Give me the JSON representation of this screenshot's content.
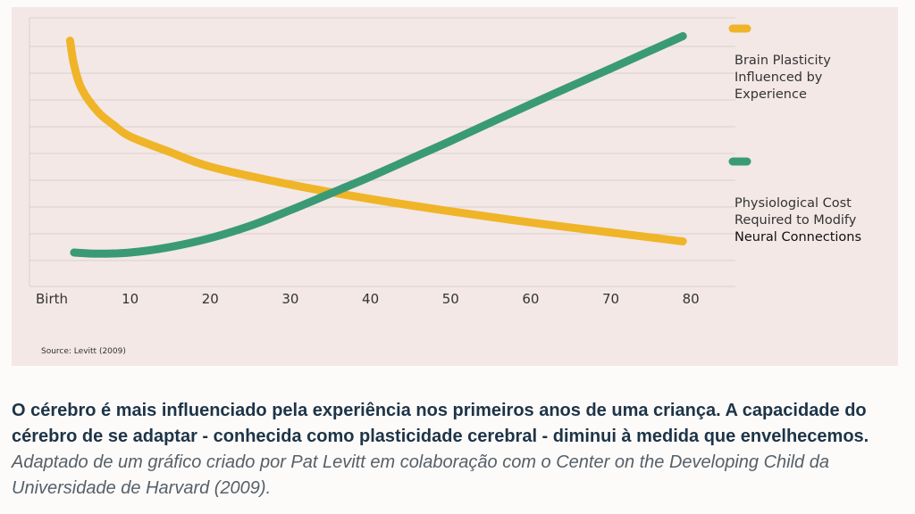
{
  "chart_data": {
    "type": "line",
    "x_tick_labels": [
      "Birth",
      "10",
      "20",
      "30",
      "40",
      "50",
      "60",
      "70",
      "80"
    ],
    "x_ticks": [
      0,
      10,
      20,
      30,
      40,
      50,
      60,
      70,
      80
    ],
    "xlim": [
      0,
      82
    ],
    "ylim": [
      0,
      100
    ],
    "grid": true,
    "series": [
      {
        "name": "Brain Plasticity Influenced by Experience",
        "legend_lines": [
          "Brain Plasticity",
          "Influenced by",
          "Experience"
        ],
        "color": "#f0b428",
        "x": [
          2.5,
          3,
          4,
          6,
          8,
          10,
          15,
          20,
          30,
          40,
          50,
          60,
          70,
          79
        ],
        "y": [
          95,
          84,
          73,
          63,
          57,
          52,
          45,
          38.5,
          30.5,
          24,
          18.5,
          13.5,
          9,
          5
        ]
      },
      {
        "name": "Physiological Cost Required to Modify Neural Connections",
        "legend_lines": [
          "Physiological Cost",
          "Required to Modify",
          "Neural Connections"
        ],
        "color": "#3a9a76",
        "x": [
          3,
          6,
          10,
          15,
          20,
          25,
          30,
          35,
          40,
          45,
          50,
          60,
          70,
          79
        ],
        "y": [
          0,
          -0.5,
          0,
          2.5,
          6.5,
          12,
          19,
          26.5,
          34,
          42,
          50,
          66.5,
          82.5,
          97
        ]
      }
    ],
    "source": "Source: Levitt (2009)"
  },
  "caption": {
    "bold": "O cérebro é mais influenciado pela experiência nos primeiros anos de uma criança. A capacidade do cérebro de se adaptar - conhecida como plasticidade cerebral - diminui à medida que envelhecemos.",
    "italic": "Adaptado de um gráfico criado por Pat Levitt em colaboração com o Center on the Developing Child da Universidade de Harvard (2009)."
  }
}
